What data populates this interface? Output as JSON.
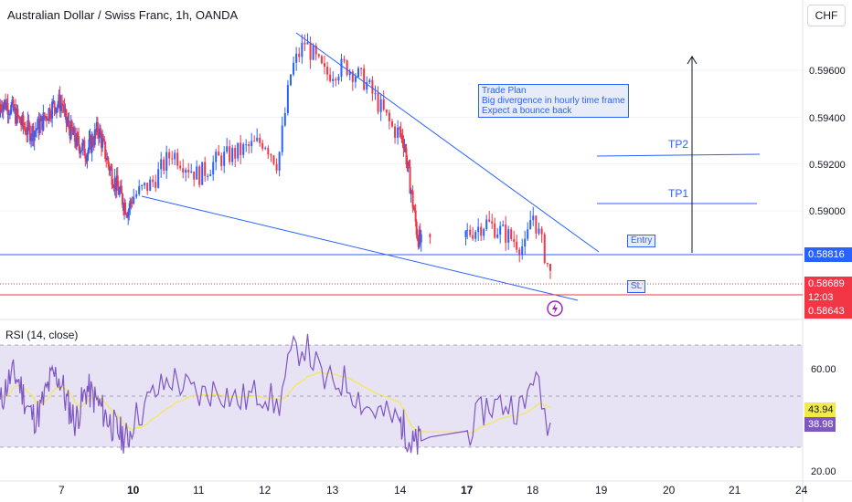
{
  "header": {
    "title": "Australian Dollar / Swiss Franc, 1h, OANDA",
    "currency_button": "CHF"
  },
  "price_axis": {
    "ticks": [
      "0.59600",
      "0.59400",
      "0.59200",
      "0.59000"
    ],
    "current_price": "0.58816",
    "last_price": "0.58689",
    "countdown": "12:03",
    "sl_price": "0.58643"
  },
  "annotations": {
    "trade_plan": [
      "Trade Plan",
      "Big divergence in hourly time frame",
      "Expect a bounce back"
    ],
    "tp1": "TP1",
    "tp2": "TP2",
    "entry": "Entry",
    "sl": "SL"
  },
  "rsi": {
    "title": "RSI (14, close)",
    "ticks": [
      "60.00",
      "20.00"
    ],
    "ma_value": "43.94",
    "rsi_value": "38.98"
  },
  "time_axis": {
    "labels": [
      {
        "text": "7",
        "bold": false
      },
      {
        "text": "10",
        "bold": true
      },
      {
        "text": "11",
        "bold": false
      },
      {
        "text": "12",
        "bold": false
      },
      {
        "text": "13",
        "bold": false
      },
      {
        "text": "14",
        "bold": false
      },
      {
        "text": "17",
        "bold": true
      },
      {
        "text": "18",
        "bold": false
      },
      {
        "text": "19",
        "bold": false
      },
      {
        "text": "20",
        "bold": false
      },
      {
        "text": "21",
        "bold": false
      },
      {
        "text": "24",
        "bold": false
      }
    ]
  },
  "colors": {
    "up": "#2962ff",
    "down": "#f23645",
    "rsi_line": "#7e57c2",
    "rsi_ma": "#f2e94e",
    "rsi_band": "#e8e2f5",
    "line": "#2962ff"
  },
  "chart_data": {
    "type": "candlestick",
    "title": "Australian Dollar / Swiss Franc, 1h, OANDA",
    "ylim": [
      0.5858,
      0.5978
    ],
    "close_path": [
      [
        7,
        0.594
      ],
      [
        7.5,
        0.593
      ],
      [
        8,
        0.5925
      ],
      [
        8.5,
        0.5935
      ],
      [
        9,
        0.5918
      ],
      [
        9.5,
        0.5906
      ],
      [
        9.8,
        0.59
      ],
      [
        10,
        0.5906
      ],
      [
        10.3,
        0.5912
      ],
      [
        10.6,
        0.5925
      ],
      [
        11,
        0.5915
      ],
      [
        11.3,
        0.5922
      ],
      [
        11.6,
        0.5925
      ],
      [
        12,
        0.593
      ],
      [
        12.2,
        0.592
      ],
      [
        12.4,
        0.596
      ],
      [
        12.6,
        0.5972
      ],
      [
        12.9,
        0.5958
      ],
      [
        13.2,
        0.5962
      ],
      [
        13.5,
        0.5955
      ],
      [
        13.9,
        0.5935
      ],
      [
        14.2,
        0.593
      ],
      [
        14.5,
        0.591
      ],
      [
        14.8,
        0.589
      ],
      [
        15,
        0.5885
      ],
      [
        17,
        0.589
      ],
      [
        17.3,
        0.5895
      ],
      [
        17.6,
        0.589
      ],
      [
        17.9,
        0.5884
      ],
      [
        18.0,
        0.59
      ],
      [
        18.2,
        0.588
      ],
      [
        18.3,
        0.5869
      ]
    ],
    "rsi_path": [
      [
        7,
        50
      ],
      [
        7.5,
        40
      ],
      [
        8,
        53
      ],
      [
        8.5,
        47
      ],
      [
        9,
        40
      ],
      [
        9.5,
        35
      ],
      [
        9.8,
        33
      ],
      [
        10,
        40
      ],
      [
        10.3,
        50
      ],
      [
        10.6,
        57
      ],
      [
        11,
        50
      ],
      [
        11.3,
        53
      ],
      [
        11.6,
        48
      ],
      [
        12,
        52
      ],
      [
        12.2,
        45
      ],
      [
        12.4,
        66
      ],
      [
        12.6,
        70
      ],
      [
        12.9,
        55
      ],
      [
        13.2,
        56
      ],
      [
        13.5,
        46
      ],
      [
        13.9,
        41
      ],
      [
        14.2,
        38
      ],
      [
        14.5,
        31
      ],
      [
        14.8,
        31
      ],
      [
        15,
        35
      ],
      [
        17,
        35
      ],
      [
        17.3,
        46
      ],
      [
        17.6,
        47
      ],
      [
        17.9,
        45
      ],
      [
        18.0,
        61
      ],
      [
        18.2,
        42
      ],
      [
        18.3,
        39
      ]
    ],
    "rsi_ma_value": 43.94,
    "rsi_value": 38.98,
    "rsi_upper_band": 70,
    "rsi_lower_band": 30
  }
}
